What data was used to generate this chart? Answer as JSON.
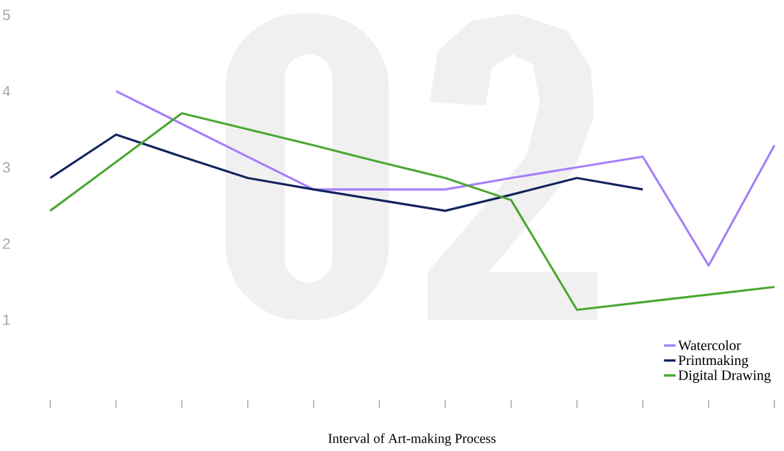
{
  "chart_data": {
    "type": "line",
    "annotations": [
      "Interval of Art-making Process"
    ],
    "categories": [
      null,
      null,
      null,
      null,
      null,
      null,
      null,
      null,
      null,
      null,
      null,
      null
    ],
    "series": [
      {
        "name": "Watercolor",
        "color": "#a47ffa",
        "values": [
          null,
          4.0,
          3.57,
          3.14,
          2.71,
          2.71,
          2.71,
          2.86,
          3.0,
          3.14,
          1.71,
          3.29
        ]
      },
      {
        "name": "Printmaking",
        "color": "#12235e",
        "values": [
          2.86,
          3.43,
          3.14,
          2.86,
          2.71,
          2.57,
          2.43,
          2.64,
          2.86,
          2.71,
          null,
          null
        ]
      },
      {
        "name": "Digital Drawing",
        "color": "#4aa832",
        "values": [
          2.43,
          3.07,
          3.71,
          3.5,
          3.29,
          3.07,
          2.86,
          2.57,
          1.13,
          1.23,
          1.33,
          1.43
        ]
      }
    ],
    "ylim": [
      1,
      5
    ],
    "yticks": [
      1,
      2,
      3,
      4,
      5
    ],
    "grid": false,
    "legend": "bottom right",
    "marker": "none",
    "line_style": "solid"
  }
}
